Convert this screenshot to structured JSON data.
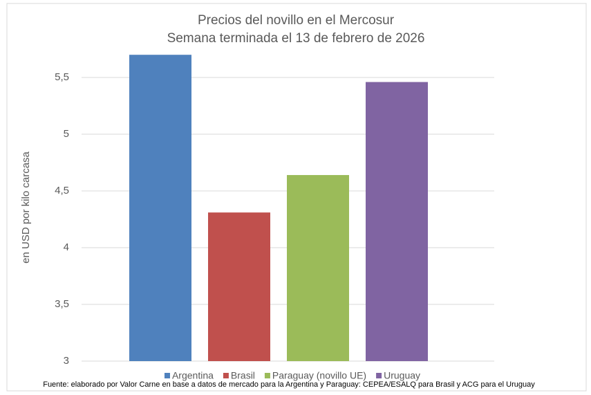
{
  "chart_data": {
    "type": "bar",
    "title": "Precios del novillo en el Mercosur",
    "subtitle": "Semana terminada el 13 de febrero de 2026",
    "y_label": "en USD por kilo carcasa",
    "source": "Fuente: elaborado por Valor Carne en base a datos de mercado para la Argentina y Paraguay: CEPEA/ESALQ para Brasil y ACG para el Uruguay",
    "categories": [
      "Argentina",
      "Brasil",
      "Paraguay (novillo UE)",
      "Uruguay"
    ],
    "values": [
      5.7,
      4.31,
      4.64,
      5.46
    ],
    "colors": [
      "#4f81bd",
      "#c0504d",
      "#9bbb59",
      "#8064a2"
    ],
    "ylim": [
      3,
      5.75
    ],
    "yticks": [
      3,
      {
        "value": 3.5,
        "label": "3,5"
      },
      4,
      {
        "value": 4.5,
        "label": "4,5"
      },
      5,
      {
        "value": 5.5,
        "label": "5,5"
      }
    ],
    "grid": true,
    "legend": "bottom"
  }
}
